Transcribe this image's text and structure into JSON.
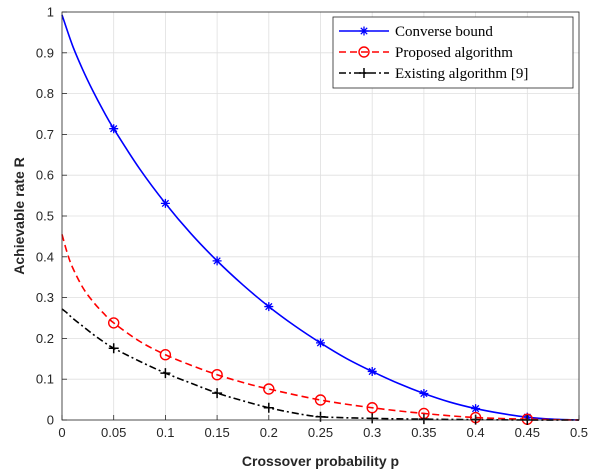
{
  "chart_data": {
    "type": "line",
    "title": "",
    "xlabel": "Crossover probability p",
    "ylabel": "Achievable rate R",
    "xlim": [
      0,
      0.5
    ],
    "ylim": [
      0,
      1
    ],
    "xticks": [
      "0",
      "0.05",
      "0.1",
      "0.15",
      "0.2",
      "0.25",
      "0.3",
      "0.35",
      "0.4",
      "0.45",
      "0.5"
    ],
    "yticks": [
      "0",
      "0.1",
      "0.2",
      "0.3",
      "0.4",
      "0.5",
      "0.6",
      "0.7",
      "0.8",
      "0.9",
      "1"
    ],
    "grid": true,
    "legend_position": "top-right",
    "series": [
      {
        "name": "Converse bound",
        "color": "#0000ff",
        "line_style": "solid",
        "marker": "asterisk",
        "x": [
          0,
          0.01,
          0.02,
          0.03,
          0.04,
          0.05,
          0.075,
          0.1,
          0.125,
          0.15,
          0.175,
          0.2,
          0.225,
          0.25,
          0.275,
          0.3,
          0.325,
          0.35,
          0.375,
          0.4,
          0.425,
          0.45,
          0.475,
          0.5
        ],
        "y": [
          0.993,
          0.919,
          0.859,
          0.806,
          0.758,
          0.714,
          0.616,
          0.531,
          0.456,
          0.39,
          0.331,
          0.278,
          0.231,
          0.189,
          0.151,
          0.119,
          0.09,
          0.065,
          0.044,
          0.028,
          0.016,
          0.007,
          0.002,
          0.0
        ],
        "marker_x": [
          0.05,
          0.1,
          0.15,
          0.2,
          0.25,
          0.3,
          0.35,
          0.4,
          0.45
        ],
        "marker_y": [
          0.714,
          0.531,
          0.39,
          0.278,
          0.189,
          0.119,
          0.065,
          0.028,
          0.007
        ]
      },
      {
        "name": "Proposed algorithm",
        "color": "#ff0000",
        "line_style": "dashed",
        "marker": "circle",
        "x": [
          0,
          0.005,
          0.01,
          0.02,
          0.03,
          0.04,
          0.05,
          0.075,
          0.1,
          0.125,
          0.15,
          0.175,
          0.2,
          0.25,
          0.3,
          0.35,
          0.4,
          0.45,
          0.5
        ],
        "y": [
          0.455,
          0.41,
          0.375,
          0.325,
          0.29,
          0.262,
          0.238,
          0.193,
          0.16,
          0.134,
          0.111,
          0.092,
          0.076,
          0.049,
          0.03,
          0.016,
          0.006,
          0.002,
          0.0
        ],
        "marker_x": [
          0.05,
          0.1,
          0.15,
          0.2,
          0.25,
          0.3,
          0.35,
          0.4,
          0.45
        ],
        "marker_y": [
          0.238,
          0.16,
          0.111,
          0.076,
          0.049,
          0.03,
          0.016,
          0.006,
          0.002
        ]
      },
      {
        "name": "Existing algorithm [9]",
        "color": "#000000",
        "line_style": "dashdot",
        "marker": "plus",
        "x": [
          0,
          0.005,
          0.01,
          0.02,
          0.03,
          0.04,
          0.05,
          0.075,
          0.1,
          0.125,
          0.15,
          0.175,
          0.2,
          0.225,
          0.25,
          0.3,
          0.35,
          0.4,
          0.45,
          0.5
        ],
        "y": [
          0.272,
          0.262,
          0.25,
          0.23,
          0.21,
          0.192,
          0.176,
          0.144,
          0.115,
          0.09,
          0.066,
          0.047,
          0.03,
          0.017,
          0.008,
          0.004,
          0.002,
          0.001,
          0.0,
          0.0
        ],
        "marker_x": [
          0.05,
          0.1,
          0.15,
          0.2,
          0.25,
          0.3,
          0.35,
          0.4,
          0.45
        ],
        "marker_y": [
          0.176,
          0.115,
          0.066,
          0.03,
          0.008,
          0.004,
          0.002,
          0.001,
          0.0
        ]
      }
    ]
  }
}
